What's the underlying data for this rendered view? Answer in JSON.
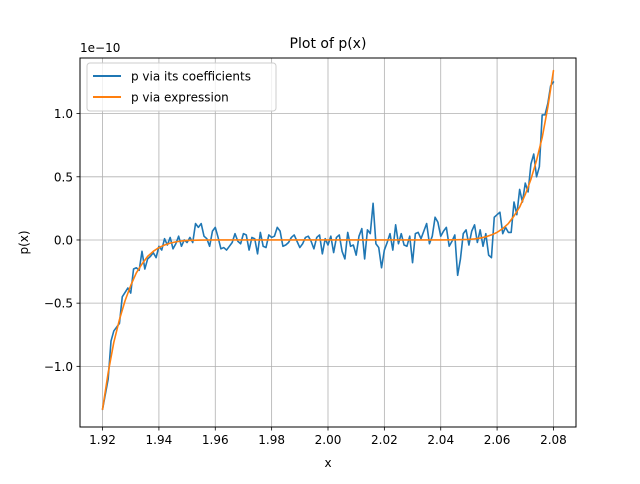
{
  "chart_data": {
    "type": "line",
    "title": "Plot of p(x)",
    "xlabel": "x",
    "ylabel": "p(x)",
    "y_scale_label": "1e−10",
    "xlim": [
      1.912,
      2.088
    ],
    "ylim": [
      -1.48,
      1.44
    ],
    "xticks": [
      1.92,
      1.94,
      1.96,
      1.98,
      2.0,
      2.02,
      2.04,
      2.06,
      2.08
    ],
    "xtick_labels": [
      "1.92",
      "1.94",
      "1.96",
      "1.98",
      "2.00",
      "2.02",
      "2.04",
      "2.06",
      "2.08"
    ],
    "yticks": [
      -1.0,
      -0.5,
      0.0,
      0.5,
      1.0
    ],
    "ytick_labels": [
      "−1.0",
      "−0.5",
      "0.0",
      "0.5",
      "1.0"
    ],
    "grid": true,
    "legend_position": "top-left",
    "series": [
      {
        "name": "p via its coefficients",
        "color": "#1f77b4",
        "x": [
          1.92,
          1.922,
          1.923,
          1.924,
          1.926,
          1.927,
          1.929,
          1.93,
          1.931,
          1.932,
          1.933,
          1.934,
          1.935,
          1.936,
          1.937,
          1.938,
          1.939,
          1.94,
          1.941,
          1.942,
          1.943,
          1.944,
          1.945,
          1.946,
          1.947,
          1.948,
          1.949,
          1.95,
          1.951,
          1.952,
          1.953,
          1.954,
          1.955,
          1.956,
          1.957,
          1.958,
          1.959,
          1.96,
          1.961,
          1.962,
          1.963,
          1.964,
          1.965,
          1.966,
          1.967,
          1.968,
          1.969,
          1.97,
          1.971,
          1.972,
          1.973,
          1.974,
          1.975,
          1.976,
          1.977,
          1.978,
          1.979,
          1.98,
          1.981,
          1.982,
          1.983,
          1.984,
          1.985,
          1.986,
          1.987,
          1.988,
          1.989,
          1.99,
          1.991,
          1.992,
          1.993,
          1.994,
          1.995,
          1.996,
          1.997,
          1.998,
          1.999,
          2.0,
          2.001,
          2.002,
          2.003,
          2.004,
          2.005,
          2.006,
          2.007,
          2.008,
          2.009,
          2.01,
          2.011,
          2.012,
          2.013,
          2.014,
          2.015,
          2.016,
          2.017,
          2.018,
          2.019,
          2.02,
          2.021,
          2.022,
          2.023,
          2.024,
          2.025,
          2.026,
          2.027,
          2.028,
          2.029,
          2.03,
          2.031,
          2.032,
          2.033,
          2.034,
          2.035,
          2.036,
          2.037,
          2.038,
          2.039,
          2.04,
          2.041,
          2.042,
          2.043,
          2.044,
          2.045,
          2.046,
          2.047,
          2.048,
          2.049,
          2.05,
          2.051,
          2.052,
          2.053,
          2.054,
          2.055,
          2.056,
          2.057,
          2.058,
          2.059,
          2.06,
          2.061,
          2.062,
          2.063,
          2.064,
          2.065,
          2.066,
          2.067,
          2.068,
          2.069,
          2.07,
          2.071,
          2.072,
          2.073,
          2.074,
          2.075,
          2.076,
          2.077,
          2.078,
          2.079,
          2.08
        ],
        "y": [
          -1.34,
          -1.1,
          -0.8,
          -0.72,
          -0.66,
          -0.45,
          -0.38,
          -0.42,
          -0.23,
          -0.22,
          -0.24,
          -0.09,
          -0.23,
          -0.15,
          -0.13,
          -0.1,
          -0.14,
          -0.05,
          -0.08,
          0.01,
          -0.04,
          0.02,
          -0.07,
          -0.03,
          0.03,
          -0.05,
          0.0,
          -0.02,
          0.02,
          -0.02,
          0.13,
          0.1,
          0.13,
          0.03,
          0.01,
          -0.05,
          0.07,
          0.1,
          0.02,
          -0.07,
          -0.06,
          -0.08,
          -0.05,
          -0.02,
          0.05,
          -0.01,
          -0.03,
          0.05,
          0.04,
          -0.08,
          0.02,
          0.01,
          -0.11,
          0.06,
          -0.05,
          -0.06,
          0.04,
          0.02,
          0.03,
          0.1,
          0.07,
          -0.05,
          -0.04,
          -0.02,
          0.02,
          0.04,
          -0.01,
          -0.06,
          -0.03,
          0.02,
          0.03,
          -0.01,
          -0.07,
          0.02,
          0.04,
          -0.11,
          0.01,
          -0.04,
          0.03,
          -0.1,
          0.02,
          0.04,
          -0.09,
          -0.15,
          0.06,
          -0.05,
          -0.04,
          -0.12,
          0.03,
          0.09,
          -0.15,
          0.08,
          0.05,
          0.29,
          -0.03,
          -0.06,
          -0.22,
          -0.08,
          -0.02,
          0.05,
          -0.08,
          0.12,
          -0.03,
          0.05,
          -0.04,
          -0.05,
          0.03,
          -0.18,
          0.05,
          0.06,
          0.01,
          0.07,
          0.13,
          -0.03,
          0.03,
          0.18,
          0.14,
          0.03,
          0.07,
          0.1,
          -0.05,
          -0.01,
          0.04,
          -0.28,
          -0.15,
          0.05,
          0.08,
          -0.04,
          0.07,
          0.12,
          -0.02,
          0.08,
          -0.05,
          0.05,
          -0.12,
          -0.14,
          0.18,
          0.2,
          0.22,
          0.05,
          0.1,
          0.06,
          0.06,
          0.3,
          0.2,
          0.4,
          0.3,
          0.45,
          0.38,
          0.6,
          0.68,
          0.5,
          0.58,
          0.99,
          0.99,
          1.08,
          1.22,
          1.25
        ]
      },
      {
        "name": "p via expression",
        "color": "#ff7f0e",
        "x": [
          1.92,
          1.922,
          1.924,
          1.926,
          1.928,
          1.93,
          1.932,
          1.934,
          1.936,
          1.938,
          1.94,
          1.942,
          1.944,
          1.946,
          1.948,
          1.95,
          1.955,
          1.96,
          1.965,
          1.97,
          1.975,
          1.98,
          1.985,
          1.99,
          1.995,
          2.0,
          2.005,
          2.01,
          2.015,
          2.02,
          2.025,
          2.03,
          2.035,
          2.04,
          2.045,
          2.05,
          2.052,
          2.054,
          2.056,
          2.058,
          2.06,
          2.062,
          2.064,
          2.066,
          2.068,
          2.07,
          2.072,
          2.074,
          2.076,
          2.078,
          2.08
        ],
        "y": [
          -1.34,
          -1.05,
          -0.81,
          -0.63,
          -0.48,
          -0.36,
          -0.26,
          -0.19,
          -0.13,
          -0.09,
          -0.06,
          -0.04,
          -0.025,
          -0.015,
          -0.008,
          -0.004,
          -0.001,
          0.0,
          0.0,
          0.0,
          0.0,
          0.0,
          0.0,
          0.0,
          0.0,
          0.0,
          0.0,
          0.0,
          0.0,
          0.0,
          0.0,
          0.0,
          0.0,
          0.0,
          0.001,
          0.004,
          0.008,
          0.015,
          0.025,
          0.04,
          0.06,
          0.09,
          0.13,
          0.19,
          0.26,
          0.36,
          0.48,
          0.63,
          0.81,
          1.05,
          1.34
        ]
      }
    ]
  }
}
